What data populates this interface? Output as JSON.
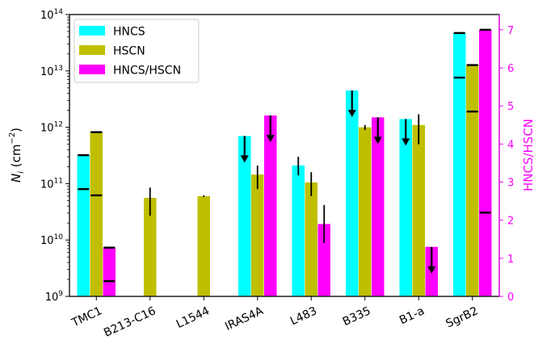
{
  "chart_data": {
    "type": "bar",
    "categories": [
      "TMC1",
      "B213-C16",
      "L1544",
      "IRAS4A",
      "L483",
      "B335",
      "B1-a",
      "SgrB2"
    ],
    "y_left": {
      "label_prefix": "N",
      "label_sub": "i",
      "label_unit_open": " (cm",
      "label_unit_exp": "−2",
      "label_unit_close": ")",
      "scale": "log",
      "range": [
        1000000000.0,
        100000000000000.0
      ],
      "ticks": [
        {
          "base": "10",
          "exp": "9",
          "value": 1000000000.0
        },
        {
          "base": "10",
          "exp": "10",
          "value": 10000000000.0
        },
        {
          "base": "10",
          "exp": "11",
          "value": 100000000000.0
        },
        {
          "base": "10",
          "exp": "12",
          "value": 1000000000000.0
        },
        {
          "base": "10",
          "exp": "13",
          "value": 10000000000000.0
        },
        {
          "base": "10",
          "exp": "14",
          "value": 100000000000000.0
        }
      ]
    },
    "y_right": {
      "label": "HNCS/HSCN",
      "range": [
        0,
        7.4
      ],
      "ticks": [
        "0",
        "1",
        "2",
        "3",
        "4",
        "5",
        "6",
        "7"
      ],
      "color": "#ff00ff"
    },
    "legend": {
      "position": "top-left",
      "entries": [
        {
          "name": "HNCS",
          "color": "#00ffff"
        },
        {
          "name": "HSCN",
          "color": "#bfbf00"
        },
        {
          "name": "HNCS/HSCN",
          "color": "#ff00ff"
        }
      ]
    },
    "series": [
      {
        "name": "HNCS",
        "axis": "left",
        "color": "#00ffff",
        "values": [
          320000000000.0,
          null,
          null,
          700000000000.0,
          210000000000.0,
          4500000000000.0,
          1400000000000.0,
          47000000000000.0
        ],
        "upper_limit": [
          false,
          false,
          false,
          true,
          false,
          true,
          true,
          false
        ],
        "range_lo": [
          80000000000.0,
          null,
          null,
          null,
          null,
          null,
          null,
          7600000000000.0
        ],
        "range_hi": [
          320000000000.0,
          null,
          null,
          null,
          null,
          null,
          null,
          47000000000000.0
        ],
        "err_lo": [
          null,
          null,
          null,
          null,
          140000000000.0,
          null,
          null,
          null
        ],
        "err_hi": [
          null,
          null,
          null,
          null,
          300000000000.0,
          null,
          null,
          null
        ]
      },
      {
        "name": "HSCN",
        "axis": "left",
        "color": "#bfbf00",
        "values": [
          820000000000.0,
          56000000000.0,
          60000000000.0,
          145000000000.0,
          105000000000.0,
          1000000000000.0,
          1100000000000.0,
          12700000000000.0
        ],
        "upper_limit": [
          false,
          false,
          false,
          false,
          false,
          false,
          false,
          false
        ],
        "range_lo": [
          62000000000.0,
          null,
          null,
          null,
          null,
          null,
          null,
          1900000000000.0
        ],
        "range_hi": [
          820000000000.0,
          null,
          null,
          null,
          null,
          null,
          null,
          12700000000000.0
        ],
        "err_lo": [
          null,
          27000000000.0,
          58000000000.0,
          80000000000.0,
          60000000000.0,
          900000000000.0,
          500000000000.0,
          null
        ],
        "err_hi": [
          null,
          85000000000.0,
          62000000000.0,
          210000000000.0,
          160000000000.0,
          1100000000000.0,
          1700000000000.0,
          null
        ]
      },
      {
        "name": "HNCS/HSCN",
        "axis": "right",
        "color": "#ff00ff",
        "values": [
          1.28,
          null,
          null,
          4.75,
          1.9,
          4.7,
          1.3,
          7.0
        ],
        "upper_limit": [
          false,
          false,
          false,
          true,
          false,
          true,
          true,
          false
        ],
        "range_lo": [
          0.4,
          null,
          null,
          null,
          null,
          null,
          null,
          2.2
        ],
        "range_hi": [
          1.28,
          null,
          null,
          null,
          null,
          null,
          null,
          7.0
        ],
        "err_lo": [
          null,
          null,
          null,
          null,
          1.4,
          null,
          null,
          null
        ],
        "err_hi": [
          null,
          null,
          null,
          null,
          2.4,
          null,
          null,
          null
        ]
      }
    ]
  }
}
